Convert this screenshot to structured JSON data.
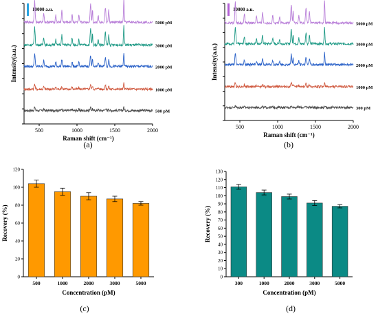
{
  "chart_data": [
    {
      "panel": "(a)",
      "type": "line",
      "xlabel": "Raman shift (cm⁻¹)",
      "ylabel": "Intensity(a.u.)",
      "xlim": [
        300,
        2000
      ],
      "xticks": [
        500,
        1000,
        1500,
        2000
      ],
      "scale_bar": {
        "label": "10000 a.u.",
        "color": "#29a3e0"
      },
      "series": [
        {
          "name": "500 pM",
          "color": "#4d4d4d",
          "base": 1.0,
          "amp": 0.25
        },
        {
          "name": "1000 pM",
          "color": "#d05a40",
          "base": 2.6,
          "amp": 0.4
        },
        {
          "name": "2000 pM",
          "color": "#2b62c8",
          "base": 4.3,
          "amp": 0.95
        },
        {
          "name": "3000 pM",
          "color": "#1f9a86",
          "base": 5.9,
          "amp": 1.35
        },
        {
          "name": "5000 pM",
          "color": "#b87ed8",
          "base": 7.6,
          "amp": 1.6
        }
      ],
      "peaks_cm": [
        440,
        560,
        720,
        800,
        935,
        1025,
        1180,
        1205,
        1280,
        1375,
        1420,
        1620
      ]
    },
    {
      "panel": "(b)",
      "type": "line",
      "xlabel": "Raman shift (cm⁻¹)",
      "ylabel": "Intensity(a.u.)",
      "xlim": [
        300,
        2000
      ],
      "xticks": [
        500,
        1000,
        1500,
        2000
      ],
      "scale_bar": {
        "label": "10000 a.u.",
        "color": "#b35fd6"
      },
      "series": [
        {
          "name": "300 pM",
          "color": "#4d4d4d",
          "base": 1.0,
          "amp": 0.1
        },
        {
          "name": "1000 pM",
          "color": "#d05a40",
          "base": 2.6,
          "amp": 0.3
        },
        {
          "name": "2000 pM",
          "color": "#2b62c8",
          "base": 4.3,
          "amp": 0.85
        },
        {
          "name": "3000 pM",
          "color": "#1f9a86",
          "base": 5.9,
          "amp": 1.25
        },
        {
          "name": "5000 pM",
          "color": "#b87ed8",
          "base": 7.5,
          "amp": 1.6
        }
      ],
      "peaks_cm": [
        440,
        560,
        720,
        800,
        935,
        1025,
        1180,
        1205,
        1280,
        1375,
        1420,
        1620
      ]
    },
    {
      "panel": "(c)",
      "type": "bar",
      "categories": [
        "500",
        "1000",
        "2000",
        "3000",
        "5000"
      ],
      "values": [
        104,
        95,
        90,
        87,
        82
      ],
      "errors": [
        4,
        4,
        4,
        3,
        2
      ],
      "xlabel": "Concentration (pM)",
      "ylabel": "Recovery (%)",
      "ylim": [
        0,
        120
      ],
      "yticks": [
        0,
        20,
        40,
        60,
        80,
        100,
        120
      ],
      "color": "#ff9900"
    },
    {
      "panel": "(d)",
      "type": "bar",
      "categories": [
        "300",
        "1000",
        "2000",
        "3000",
        "5000"
      ],
      "values": [
        111,
        104,
        99,
        91,
        87
      ],
      "errors": [
        3,
        3,
        3,
        3,
        2
      ],
      "xlabel": "Concentration (pM)",
      "ylabel": "Recovery (%)",
      "ylim": [
        0,
        130
      ],
      "yticks": [
        0,
        10,
        20,
        30,
        40,
        50,
        60,
        70,
        80,
        90,
        100,
        110,
        120,
        130
      ],
      "color": "#0b8a85"
    }
  ],
  "panel_labels": [
    "(a)",
    "(b)",
    "(c)",
    "(d)"
  ]
}
